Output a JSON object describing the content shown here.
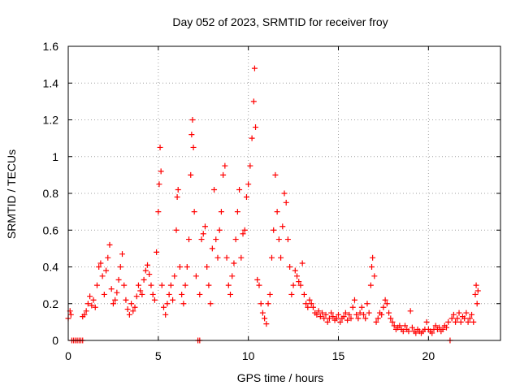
{
  "chart_data": {
    "type": "scatter",
    "title": "Day 052 of 2023, SRMTID for receiver froy",
    "xlabel": "GPS time / hours",
    "ylabel": "SRMTID / TECUs",
    "xlim": [
      0,
      24
    ],
    "ylim": [
      0,
      1.6
    ],
    "xticks": [
      0,
      5,
      10,
      15,
      20
    ],
    "xtick_labels": [
      "0",
      "5",
      "10",
      "15",
      "20"
    ],
    "yticks": [
      0,
      0.2,
      0.4,
      0.6,
      0.8,
      1.0,
      1.2,
      1.4,
      1.6
    ],
    "ytick_labels": [
      "0",
      "0.2",
      "0.4",
      "0.6",
      "0.8",
      "1",
      "1.2",
      "1.4",
      "1.6"
    ],
    "grid": true,
    "marker": "+",
    "series": [
      {
        "name": "SRMTID",
        "color": "#ff0000",
        "points": [
          [
            0.0,
            0.12
          ],
          [
            0.1,
            0.16
          ],
          [
            0.15,
            0.14
          ],
          [
            0.2,
            0.0
          ],
          [
            0.3,
            0.0
          ],
          [
            0.4,
            0.0
          ],
          [
            0.5,
            0.0
          ],
          [
            0.6,
            0.0
          ],
          [
            0.7,
            0.0
          ],
          [
            0.8,
            0.0
          ],
          [
            0.8,
            0.13
          ],
          [
            0.9,
            0.14
          ],
          [
            1.0,
            0.16
          ],
          [
            1.1,
            0.2
          ],
          [
            1.2,
            0.24
          ],
          [
            1.3,
            0.19
          ],
          [
            1.4,
            0.22
          ],
          [
            1.5,
            0.18
          ],
          [
            1.6,
            0.3
          ],
          [
            1.7,
            0.4
          ],
          [
            1.8,
            0.42
          ],
          [
            1.9,
            0.35
          ],
          [
            2.0,
            0.25
          ],
          [
            2.1,
            0.38
          ],
          [
            2.2,
            0.45
          ],
          [
            2.3,
            0.52
          ],
          [
            2.4,
            0.28
          ],
          [
            2.5,
            0.2
          ],
          [
            2.6,
            0.22
          ],
          [
            2.7,
            0.26
          ],
          [
            2.8,
            0.33
          ],
          [
            2.9,
            0.4
          ],
          [
            3.0,
            0.47
          ],
          [
            3.1,
            0.3
          ],
          [
            3.2,
            0.22
          ],
          [
            3.3,
            0.17
          ],
          [
            3.4,
            0.14
          ],
          [
            3.5,
            0.2
          ],
          [
            3.6,
            0.16
          ],
          [
            3.7,
            0.18
          ],
          [
            3.8,
            0.24
          ],
          [
            3.9,
            0.3
          ],
          [
            4.0,
            0.27
          ],
          [
            4.1,
            0.25
          ],
          [
            4.2,
            0.33
          ],
          [
            4.3,
            0.38
          ],
          [
            4.4,
            0.41
          ],
          [
            4.5,
            0.36
          ],
          [
            4.6,
            0.3
          ],
          [
            4.7,
            0.25
          ],
          [
            4.8,
            0.22
          ],
          [
            4.9,
            0.48
          ],
          [
            5.0,
            0.7
          ],
          [
            5.05,
            0.85
          ],
          [
            5.1,
            1.05
          ],
          [
            5.15,
            0.92
          ],
          [
            5.2,
            0.3
          ],
          [
            5.3,
            0.18
          ],
          [
            5.4,
            0.14
          ],
          [
            5.5,
            0.2
          ],
          [
            5.6,
            0.25
          ],
          [
            5.7,
            0.3
          ],
          [
            5.8,
            0.22
          ],
          [
            5.9,
            0.35
          ],
          [
            6.0,
            0.6
          ],
          [
            6.05,
            0.78
          ],
          [
            6.1,
            0.82
          ],
          [
            6.2,
            0.4
          ],
          [
            6.3,
            0.25
          ],
          [
            6.4,
            0.2
          ],
          [
            6.5,
            0.3
          ],
          [
            6.6,
            0.4
          ],
          [
            6.7,
            0.55
          ],
          [
            6.8,
            0.9
          ],
          [
            6.85,
            1.12
          ],
          [
            6.9,
            1.2
          ],
          [
            6.95,
            1.05
          ],
          [
            7.0,
            0.7
          ],
          [
            7.1,
            0.35
          ],
          [
            7.2,
            0.0
          ],
          [
            7.3,
            0.0
          ],
          [
            7.3,
            0.25
          ],
          [
            7.4,
            0.55
          ],
          [
            7.5,
            0.58
          ],
          [
            7.6,
            0.62
          ],
          [
            7.7,
            0.4
          ],
          [
            7.8,
            0.3
          ],
          [
            7.9,
            0.2
          ],
          [
            8.0,
            0.5
          ],
          [
            8.1,
            0.82
          ],
          [
            8.2,
            0.55
          ],
          [
            8.3,
            0.45
          ],
          [
            8.4,
            0.6
          ],
          [
            8.5,
            0.7
          ],
          [
            8.6,
            0.9
          ],
          [
            8.7,
            0.95
          ],
          [
            8.8,
            0.45
          ],
          [
            8.9,
            0.3
          ],
          [
            9.0,
            0.25
          ],
          [
            9.1,
            0.35
          ],
          [
            9.2,
            0.42
          ],
          [
            9.3,
            0.55
          ],
          [
            9.4,
            0.7
          ],
          [
            9.5,
            0.82
          ],
          [
            9.6,
            0.45
          ],
          [
            9.7,
            0.58
          ],
          [
            9.8,
            0.6
          ],
          [
            9.9,
            0.78
          ],
          [
            10.0,
            0.85
          ],
          [
            10.1,
            0.95
          ],
          [
            10.2,
            1.1
          ],
          [
            10.3,
            1.3
          ],
          [
            10.35,
            1.48
          ],
          [
            10.4,
            1.16
          ],
          [
            10.5,
            0.33
          ],
          [
            10.6,
            0.3
          ],
          [
            10.7,
            0.2
          ],
          [
            10.8,
            0.15
          ],
          [
            10.9,
            0.12
          ],
          [
            11.0,
            0.09
          ],
          [
            11.1,
            0.2
          ],
          [
            11.2,
            0.25
          ],
          [
            11.3,
            0.45
          ],
          [
            11.4,
            0.6
          ],
          [
            11.5,
            0.9
          ],
          [
            11.6,
            0.7
          ],
          [
            11.7,
            0.55
          ],
          [
            11.8,
            0.45
          ],
          [
            11.9,
            0.62
          ],
          [
            12.0,
            0.8
          ],
          [
            12.1,
            0.75
          ],
          [
            12.2,
            0.55
          ],
          [
            12.3,
            0.4
          ],
          [
            12.4,
            0.25
          ],
          [
            12.5,
            0.3
          ],
          [
            12.6,
            0.38
          ],
          [
            12.7,
            0.35
          ],
          [
            12.8,
            0.32
          ],
          [
            12.9,
            0.3
          ],
          [
            13.0,
            0.42
          ],
          [
            13.1,
            0.25
          ],
          [
            13.2,
            0.2
          ],
          [
            13.3,
            0.18
          ],
          [
            13.4,
            0.22
          ],
          [
            13.5,
            0.2
          ],
          [
            13.6,
            0.18
          ],
          [
            13.7,
            0.15
          ],
          [
            13.8,
            0.14
          ],
          [
            13.9,
            0.16
          ],
          [
            14.0,
            0.13
          ],
          [
            14.1,
            0.15
          ],
          [
            14.2,
            0.12
          ],
          [
            14.3,
            0.14
          ],
          [
            14.4,
            0.1
          ],
          [
            14.5,
            0.12
          ],
          [
            14.6,
            0.15
          ],
          [
            14.7,
            0.13
          ],
          [
            14.8,
            0.11
          ],
          [
            14.9,
            0.12
          ],
          [
            15.0,
            0.14
          ],
          [
            15.1,
            0.1
          ],
          [
            15.2,
            0.12
          ],
          [
            15.3,
            0.13
          ],
          [
            15.4,
            0.15
          ],
          [
            15.5,
            0.11
          ],
          [
            15.6,
            0.14
          ],
          [
            15.7,
            0.12
          ],
          [
            15.8,
            0.18
          ],
          [
            15.9,
            0.22
          ],
          [
            16.0,
            0.14
          ],
          [
            16.1,
            0.12
          ],
          [
            16.2,
            0.15
          ],
          [
            16.3,
            0.18
          ],
          [
            16.4,
            0.14
          ],
          [
            16.5,
            0.12
          ],
          [
            16.6,
            0.2
          ],
          [
            16.7,
            0.15
          ],
          [
            16.8,
            0.3
          ],
          [
            16.85,
            0.4
          ],
          [
            16.9,
            0.45
          ],
          [
            17.0,
            0.35
          ],
          [
            17.1,
            0.1
          ],
          [
            17.2,
            0.12
          ],
          [
            17.3,
            0.15
          ],
          [
            17.4,
            0.14
          ],
          [
            17.5,
            0.18
          ],
          [
            17.6,
            0.22
          ],
          [
            17.7,
            0.2
          ],
          [
            17.8,
            0.15
          ],
          [
            17.9,
            0.12
          ],
          [
            18.0,
            0.1
          ],
          [
            18.1,
            0.08
          ],
          [
            18.2,
            0.06
          ],
          [
            18.3,
            0.07
          ],
          [
            18.4,
            0.08
          ],
          [
            18.5,
            0.06
          ],
          [
            18.6,
            0.05
          ],
          [
            18.7,
            0.08
          ],
          [
            18.8,
            0.06
          ],
          [
            18.9,
            0.05
          ],
          [
            19.0,
            0.16
          ],
          [
            19.1,
            0.07
          ],
          [
            19.2,
            0.05
          ],
          [
            19.3,
            0.04
          ],
          [
            19.4,
            0.06
          ],
          [
            19.5,
            0.05
          ],
          [
            19.6,
            0.04
          ],
          [
            19.7,
            0.05
          ],
          [
            19.8,
            0.06
          ],
          [
            19.9,
            0.1
          ],
          [
            20.0,
            0.06
          ],
          [
            20.1,
            0.05
          ],
          [
            20.2,
            0.04
          ],
          [
            20.3,
            0.06
          ],
          [
            20.4,
            0.08
          ],
          [
            20.5,
            0.06
          ],
          [
            20.6,
            0.07
          ],
          [
            20.7,
            0.05
          ],
          [
            20.8,
            0.06
          ],
          [
            20.9,
            0.08
          ],
          [
            21.0,
            0.07
          ],
          [
            21.1,
            0.1
          ],
          [
            21.2,
            0.0
          ],
          [
            21.3,
            0.12
          ],
          [
            21.4,
            0.14
          ],
          [
            21.5,
            0.1
          ],
          [
            21.6,
            0.12
          ],
          [
            21.7,
            0.15
          ],
          [
            21.8,
            0.1
          ],
          [
            21.9,
            0.13
          ],
          [
            22.0,
            0.12
          ],
          [
            22.1,
            0.15
          ],
          [
            22.2,
            0.1
          ],
          [
            22.3,
            0.12
          ],
          [
            22.4,
            0.14
          ],
          [
            22.5,
            0.1
          ],
          [
            22.6,
            0.25
          ],
          [
            22.65,
            0.3
          ],
          [
            22.7,
            0.2
          ],
          [
            22.75,
            0.27
          ]
        ]
      }
    ]
  }
}
